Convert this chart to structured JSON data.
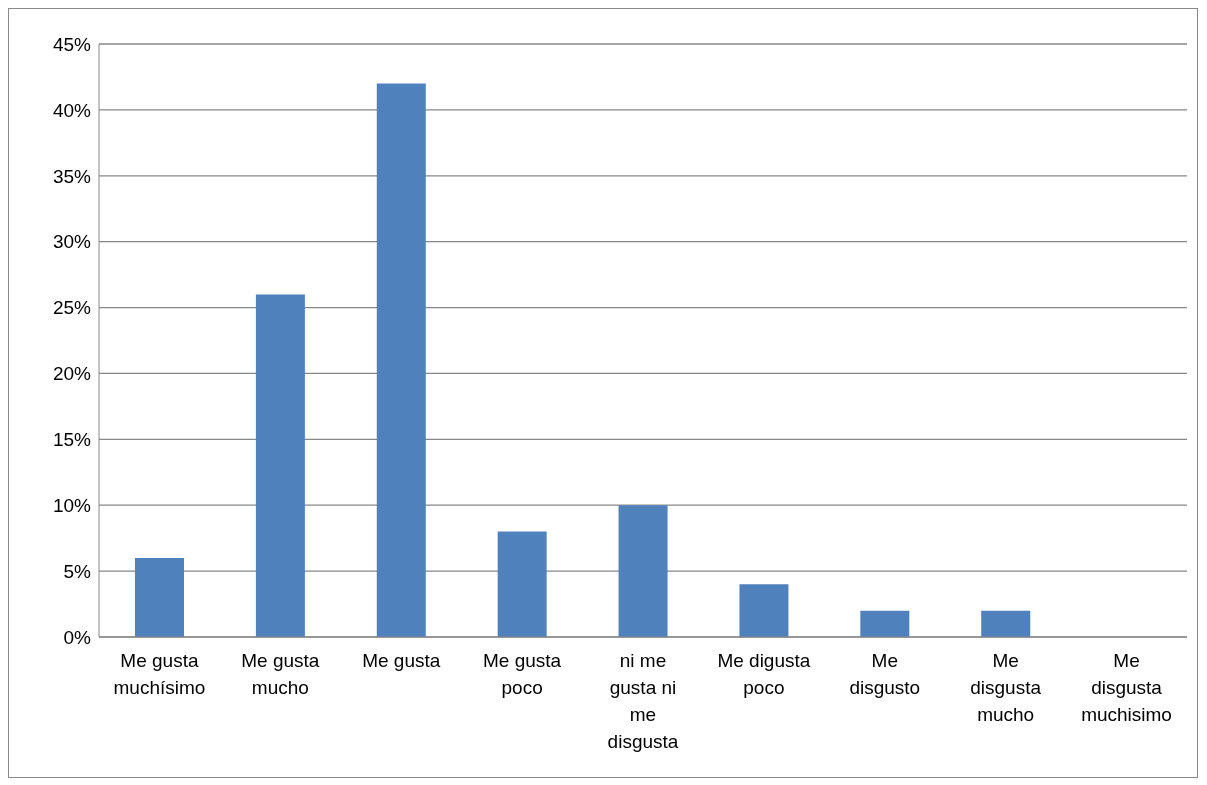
{
  "chart_data": {
    "type": "bar",
    "categories": [
      "Me gusta muchísimo",
      "Me gusta mucho",
      "Me gusta",
      "Me gusta poco",
      "ni me gusta ni me disgusta",
      "Me digusta poco",
      "Me disgusto",
      "Me disgusta mucho",
      "Me disgusta muchisimo"
    ],
    "values": [
      6,
      26,
      42,
      8,
      10,
      4,
      2,
      2,
      0
    ],
    "color": "#4f81bd",
    "ylim": [
      0,
      45
    ],
    "yticks": [
      {
        "value": 0,
        "label": "0%"
      },
      {
        "value": 5,
        "label": "5%"
      },
      {
        "value": 10,
        "label": "10%"
      },
      {
        "value": 15,
        "label": "15%"
      },
      {
        "value": 20,
        "label": "20%"
      },
      {
        "value": 25,
        "label": "25%"
      },
      {
        "value": 30,
        "label": "30%"
      },
      {
        "value": 35,
        "label": "35%"
      },
      {
        "value": 40,
        "label": "40%"
      },
      {
        "value": 45,
        "label": "45%"
      }
    ],
    "grid": "y",
    "legend": false
  }
}
